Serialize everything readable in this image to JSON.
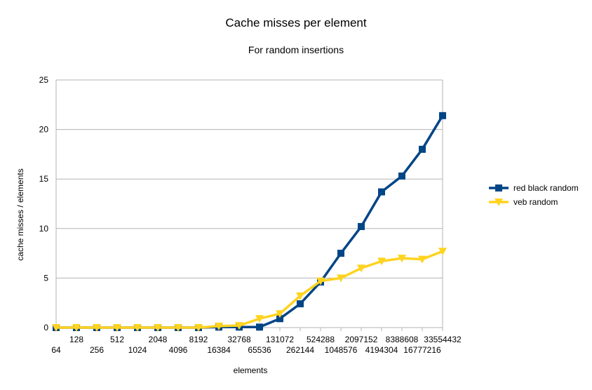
{
  "chart_data": {
    "type": "line",
    "title": "Cache misses per element",
    "subtitle": "For random insertions",
    "xlabel": "elements",
    "ylabel": "cache misses / elements",
    "ylim": [
      0,
      25
    ],
    "yticks": [
      0,
      5,
      10,
      15,
      20,
      25
    ],
    "grid": true,
    "legend_position": "right",
    "categories": [
      "64",
      "128",
      "256",
      "512",
      "1024",
      "2048",
      "4096",
      "8192",
      "16384",
      "32768",
      "65536",
      "131072",
      "262144",
      "524288",
      "1048576",
      "2097152",
      "4194304",
      "8388608",
      "16777216",
      "33554432"
    ],
    "series": [
      {
        "name": "red black random",
        "color": "#004586",
        "marker": "square",
        "values": [
          0,
          0,
          0,
          0,
          0,
          0,
          0,
          0,
          0.05,
          0.05,
          0.05,
          0.9,
          2.4,
          4.6,
          7.5,
          10.2,
          13.7,
          15.3,
          18.0,
          21.4
        ]
      },
      {
        "name": "veb random",
        "color": "#ffd320",
        "marker": "triangle-down",
        "values": [
          0,
          0,
          0,
          0,
          0,
          0,
          0,
          0,
          0.15,
          0.2,
          0.9,
          1.4,
          3.2,
          4.7,
          5.0,
          6.0,
          6.7,
          7.0,
          6.9,
          7.7
        ]
      }
    ]
  }
}
